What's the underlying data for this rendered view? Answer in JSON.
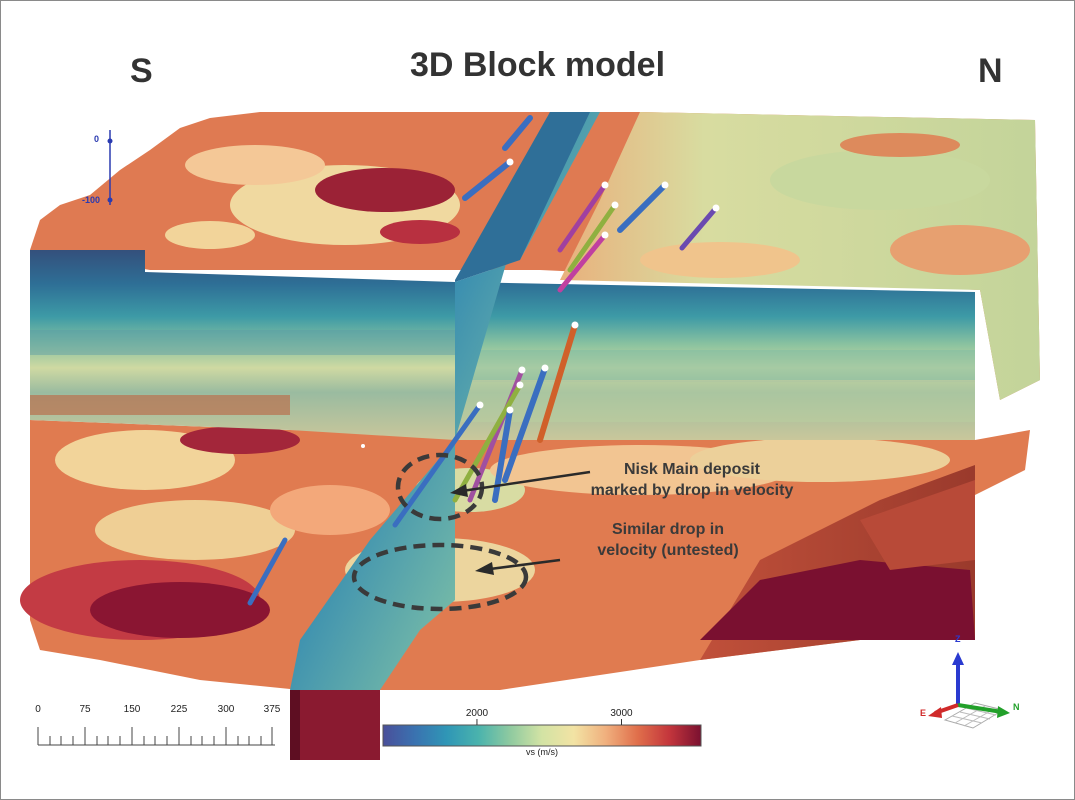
{
  "title": "3D Block model",
  "directions": {
    "south": "S",
    "north": "N"
  },
  "annotations": {
    "main_deposit": [
      "Nisk Main deposit",
      "marked by drop in velocity"
    ],
    "untested": [
      "Similar drop in",
      "velocity (untested)"
    ]
  },
  "depth_axis": {
    "labels": [
      "0",
      "-100"
    ]
  },
  "scale_bar": {
    "labels": [
      "0",
      "75",
      "150",
      "225",
      "300",
      "375"
    ]
  },
  "colorbar": {
    "title": "vs (m/s)",
    "ticks": [
      {
        "label": "2000",
        "value": 2000
      },
      {
        "label": "3000",
        "value": 3000
      }
    ],
    "range": [
      1350,
      3550
    ],
    "colors": [
      "#4a4f9a",
      "#3a72b0",
      "#2f96b6",
      "#4ab3ad",
      "#8fcaa0",
      "#d3e3a4",
      "#f2e3a4",
      "#f0b07e",
      "#e06f4b",
      "#c4363c",
      "#7a1030"
    ]
  },
  "orientation_axes": {
    "z": "Z",
    "e": "E",
    "n": "N"
  }
}
